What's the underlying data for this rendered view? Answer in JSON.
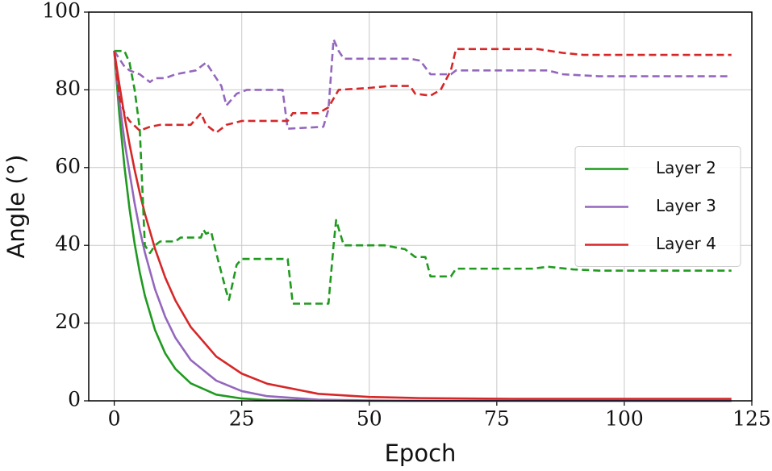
{
  "chart_data": {
    "type": "line",
    "xlabel": "Epoch",
    "ylabel": "Angle (°)",
    "xlim": [
      -5,
      125
    ],
    "ylim": [
      0,
      100
    ],
    "xticks": [
      0,
      25,
      50,
      75,
      100,
      125
    ],
    "yticks": [
      0,
      20,
      40,
      60,
      80,
      100
    ],
    "grid": true,
    "legend": "center right",
    "series": [
      {
        "name": "Layer 2",
        "color": "#1f9a1f",
        "dash": false,
        "x": [
          0,
          1,
          2,
          3,
          4,
          5,
          6,
          8,
          10,
          12,
          15,
          20,
          25,
          30,
          40,
          50,
          60,
          80,
          100,
          121
        ],
        "values": [
          90,
          73.7,
          60.3,
          49.4,
          40.4,
          33.1,
          27.1,
          18.2,
          12.2,
          8.2,
          4.5,
          1.6,
          0.6,
          0.2,
          0.1,
          0,
          0,
          0,
          0,
          0
        ]
      },
      {
        "name": "Layer 3",
        "color": "#9467bd",
        "dash": false,
        "x": [
          0,
          1,
          2,
          3,
          4,
          5,
          6,
          8,
          10,
          12,
          15,
          20,
          25,
          30,
          40,
          50,
          60,
          80,
          100,
          121
        ],
        "values": [
          90,
          77.1,
          66.9,
          58.7,
          50.8,
          44.0,
          38.2,
          28.7,
          21.6,
          16.2,
          10.5,
          5.2,
          2.5,
          1.2,
          0.3,
          0.1,
          0,
          0,
          0,
          0
        ]
      },
      {
        "name": "Layer 4",
        "color": "#d62728",
        "dash": false,
        "x": [
          0,
          1,
          2,
          3,
          4,
          5,
          6,
          8,
          10,
          12,
          15,
          20,
          25,
          30,
          40,
          50,
          60,
          80,
          100,
          121
        ],
        "values": [
          90,
          81.4,
          73.3,
          66.0,
          59.4,
          53.5,
          48.2,
          39.1,
          31.7,
          25.8,
          19.0,
          11.4,
          7.0,
          4.4,
          1.8,
          1.0,
          0.7,
          0.5,
          0.5,
          0.5
        ]
      },
      {
        "color": "#1f9a1f",
        "dash": true,
        "x": [
          0,
          2,
          3,
          4,
          5,
          6,
          7,
          8,
          9,
          12,
          13,
          17,
          17.5,
          18,
          19,
          20,
          21,
          22,
          22.5,
          23,
          24,
          25,
          34,
          35,
          41,
          42,
          43,
          43.5,
          45,
          53,
          57,
          59,
          61,
          62,
          66,
          67,
          82,
          85,
          90,
          95,
          121
        ],
        "values": [
          90,
          90,
          87,
          80,
          70,
          40,
          38,
          40,
          41,
          41,
          42,
          42,
          44,
          43,
          43.5,
          38,
          33,
          28,
          26,
          29,
          35,
          36.5,
          36.5,
          25,
          25,
          25,
          40,
          46.5,
          40,
          40,
          39,
          37,
          37,
          32,
          32,
          34,
          34,
          34.5,
          33.8,
          33.5,
          33.5
        ]
      },
      {
        "color": "#9467bd",
        "dash": true,
        "x": [
          0,
          1,
          2,
          3,
          5,
          7,
          8,
          10,
          12,
          16,
          18,
          19,
          21,
          22,
          24,
          26,
          33,
          34,
          41,
          42,
          43,
          44,
          45,
          52,
          58,
          60,
          62,
          66,
          67,
          85,
          88,
          95,
          121
        ],
        "values": [
          90,
          88,
          86,
          85,
          84,
          82,
          83,
          83,
          84,
          85,
          87,
          85,
          81,
          76,
          79,
          80,
          80,
          70,
          70.5,
          75,
          93,
          90,
          88,
          88,
          88,
          87.5,
          84,
          84,
          85,
          85,
          84,
          83.5,
          83.5
        ]
      },
      {
        "color": "#d62728",
        "dash": true,
        "x": [
          0,
          1,
          2,
          3,
          5,
          7,
          9,
          12,
          15,
          17,
          18,
          20,
          21,
          22,
          25,
          34,
          35,
          40,
          42,
          44,
          50,
          54,
          58,
          59,
          62,
          64,
          66,
          67,
          75,
          83,
          88,
          92,
          121
        ],
        "values": [
          90,
          78,
          74,
          72,
          69.5,
          70.5,
          71,
          71,
          71,
          74,
          71,
          69,
          70,
          71,
          72,
          72,
          74,
          74,
          75.5,
          80,
          80.5,
          81,
          81,
          79,
          78.5,
          80,
          85,
          90.5,
          90.5,
          90.5,
          89.5,
          89,
          89
        ]
      }
    ]
  }
}
